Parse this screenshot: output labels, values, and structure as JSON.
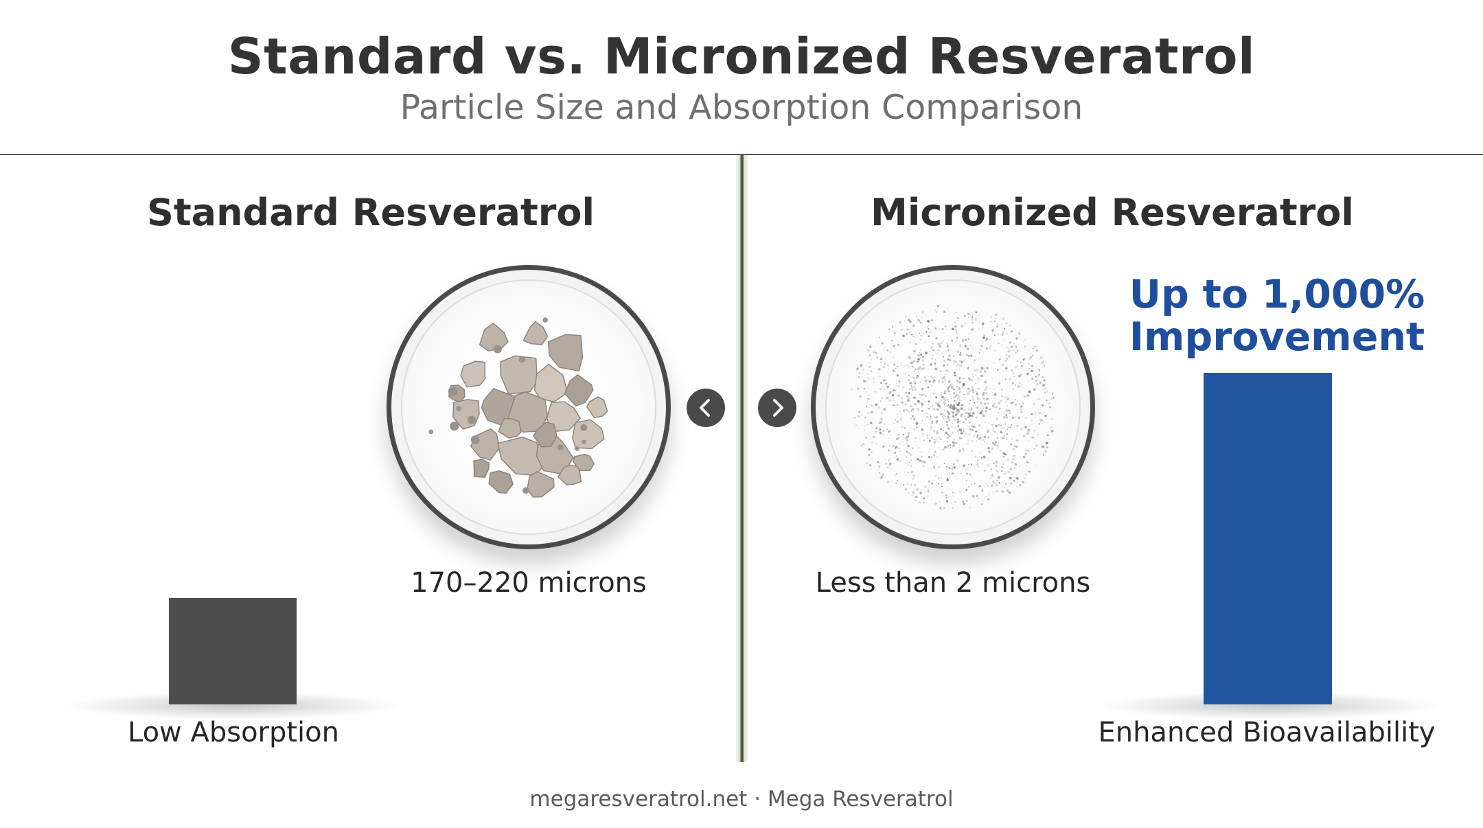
{
  "header": {
    "title": "Standard vs. Micronized Resveratrol",
    "subtitle": "Particle Size and Absorption Comparison"
  },
  "left_panel": {
    "heading": "Standard Resveratrol",
    "particle_size": "170–220 microns",
    "absorption_label": "Low Absorption",
    "bar_color": "#4d4d4d",
    "bar_level": 0.32
  },
  "right_panel": {
    "heading": "Micronized Resveratrol",
    "particle_size": "Less than 2 microns",
    "improvement_line1": "Up to 1,000%",
    "improvement_line2": "Improvement",
    "absorption_label": "Enhanced Bioavailability",
    "bar_color": "#2155a0",
    "bar_level": 1.0
  },
  "navigation": {
    "prev_icon": "chevron-left-icon",
    "next_icon": "chevron-right-icon"
  },
  "footer": {
    "text": "megaresveratrol.net · Mega Resveratrol"
  },
  "colors": {
    "accent": "#1f4f9c",
    "title": "#333333",
    "subtitle": "#6f6f6f"
  }
}
